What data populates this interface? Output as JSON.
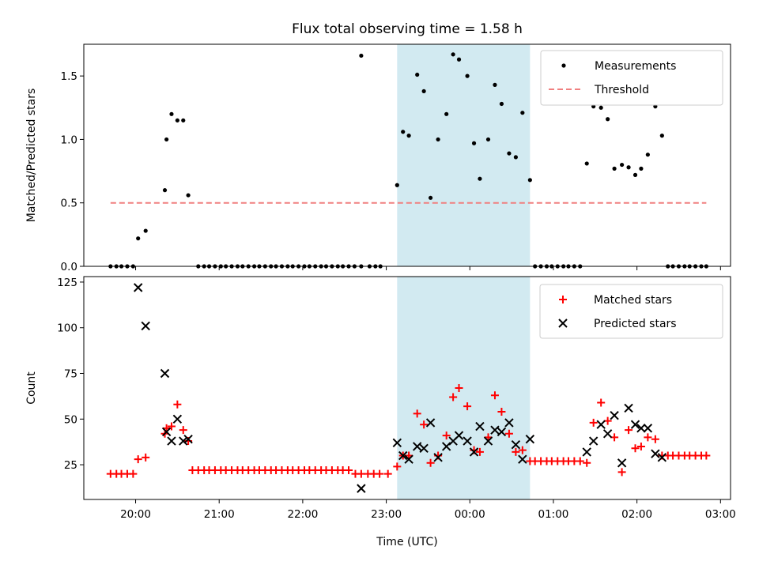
{
  "chart_data": {
    "title": "Flux total observing time = 1.58 h",
    "xlabel": "Time (UTC)",
    "x_unit": "hours since 00:00 UTC (negative = previous day)",
    "x_ticks": [
      {
        "value": -4,
        "label": "20:00"
      },
      {
        "value": -3,
        "label": "21:00"
      },
      {
        "value": -2,
        "label": "22:00"
      },
      {
        "value": -1,
        "label": "23:00"
      },
      {
        "value": 0,
        "label": "00:00"
      },
      {
        "value": 1,
        "label": "01:00"
      },
      {
        "value": 2,
        "label": "02:00"
      },
      {
        "value": 3,
        "label": "03:00"
      }
    ],
    "xlim": [
      -4.62,
      3.12
    ],
    "shaded_region": {
      "x": [
        -0.87,
        0.72
      ],
      "color": "#add8e6"
    },
    "panels": [
      {
        "type": "scatter",
        "ylabel": "Matched/Predicted stars",
        "ylim": [
          0,
          1.75
        ],
        "y_ticks": [
          0.0,
          0.5,
          1.0,
          1.5
        ],
        "y_tick_labels": [
          "0.0",
          "0.5",
          "1.0",
          "1.5"
        ],
        "legend": "top-right",
        "series": [
          {
            "name": "Measurements",
            "marker": "dot",
            "color": "#000000",
            "points": [
              [
                -4.3,
                0
              ],
              [
                -4.23,
                0
              ],
              [
                -4.17,
                0
              ],
              [
                -4.1,
                0
              ],
              [
                -4.03,
                0
              ],
              [
                -3.97,
                0.22
              ],
              [
                -3.88,
                0.28
              ],
              [
                -3.65,
                0.6
              ],
              [
                -3.63,
                1.0
              ],
              [
                -3.57,
                1.2
              ],
              [
                -3.5,
                1.15
              ],
              [
                -3.43,
                1.15
              ],
              [
                -3.37,
                0.56
              ],
              [
                -3.25,
                0
              ],
              [
                -3.18,
                0
              ],
              [
                -3.12,
                0
              ],
              [
                -3.05,
                0
              ],
              [
                -2.98,
                0
              ],
              [
                -2.92,
                0
              ],
              [
                -2.85,
                0
              ],
              [
                -2.78,
                0
              ],
              [
                -2.72,
                0
              ],
              [
                -2.65,
                0
              ],
              [
                -2.58,
                0
              ],
              [
                -2.52,
                0
              ],
              [
                -2.45,
                0
              ],
              [
                -2.38,
                0
              ],
              [
                -2.32,
                0
              ],
              [
                -2.25,
                0
              ],
              [
                -2.18,
                0
              ],
              [
                -2.12,
                0
              ],
              [
                -2.05,
                0
              ],
              [
                -1.98,
                0
              ],
              [
                -1.92,
                0
              ],
              [
                -1.85,
                0
              ],
              [
                -1.78,
                0
              ],
              [
                -1.72,
                0
              ],
              [
                -1.65,
                0
              ],
              [
                -1.58,
                0
              ],
              [
                -1.52,
                0
              ],
              [
                -1.3,
                1.66
              ],
              [
                -1.45,
                0
              ],
              [
                -1.38,
                0
              ],
              [
                -1.3,
                0
              ],
              [
                -1.2,
                0
              ],
              [
                -1.13,
                0
              ],
              [
                -1.07,
                0
              ],
              [
                -0.87,
                0.64
              ],
              [
                -0.8,
                1.06
              ],
              [
                -0.73,
                1.03
              ],
              [
                -0.63,
                1.51
              ],
              [
                -0.55,
                1.38
              ],
              [
                -0.47,
                0.54
              ],
              [
                -0.38,
                1.0
              ],
              [
                -0.28,
                1.2
              ],
              [
                -0.2,
                1.67
              ],
              [
                -0.13,
                1.63
              ],
              [
                -0.03,
                1.5
              ],
              [
                0.05,
                0.97
              ],
              [
                0.12,
                0.69
              ],
              [
                0.22,
                1.0
              ],
              [
                0.3,
                1.43
              ],
              [
                0.38,
                1.28
              ],
              [
                0.47,
                0.89
              ],
              [
                0.55,
                0.86
              ],
              [
                0.63,
                1.21
              ],
              [
                0.72,
                0.68
              ],
              [
                0.78,
                0
              ],
              [
                0.85,
                0
              ],
              [
                0.92,
                0
              ],
              [
                0.98,
                0
              ],
              [
                1.05,
                0
              ],
              [
                1.12,
                0
              ],
              [
                1.18,
                0
              ],
              [
                1.25,
                0
              ],
              [
                1.32,
                0
              ],
              [
                1.4,
                0.81
              ],
              [
                1.48,
                1.26
              ],
              [
                1.57,
                1.25
              ],
              [
                1.65,
                1.16
              ],
              [
                1.73,
                0.77
              ],
              [
                1.82,
                0.8
              ],
              [
                1.9,
                0.78
              ],
              [
                1.98,
                0.72
              ],
              [
                2.05,
                0.77
              ],
              [
                2.13,
                0.88
              ],
              [
                2.22,
                1.26
              ],
              [
                2.3,
                1.03
              ],
              [
                2.37,
                0
              ],
              [
                2.43,
                0
              ],
              [
                2.5,
                0
              ],
              [
                2.57,
                0
              ],
              [
                2.63,
                0
              ],
              [
                2.7,
                0
              ],
              [
                2.77,
                0
              ],
              [
                2.83,
                0
              ]
            ]
          },
          {
            "name": "Threshold",
            "marker": "dashed-line",
            "color": "#f08080",
            "points": [
              [
                -4.3,
                0.5
              ],
              [
                2.83,
                0.5
              ]
            ]
          }
        ]
      },
      {
        "type": "scatter",
        "ylabel": "Count",
        "ylim": [
          6,
          128
        ],
        "y_ticks": [
          25,
          50,
          75,
          100,
          125
        ],
        "y_tick_labels": [
          "25",
          "50",
          "75",
          "100",
          "125"
        ],
        "legend": "top-right",
        "series": [
          {
            "name": "Matched stars",
            "marker": "plus",
            "color": "#ff0000",
            "points": [
              [
                -4.3,
                20
              ],
              [
                -4.23,
                20
              ],
              [
                -4.17,
                20
              ],
              [
                -4.1,
                20
              ],
              [
                -4.03,
                20
              ],
              [
                -3.97,
                28
              ],
              [
                -3.88,
                29
              ],
              [
                -3.65,
                42
              ],
              [
                -3.63,
                45
              ],
              [
                -3.57,
                46
              ],
              [
                -3.5,
                58
              ],
              [
                -3.43,
                44
              ],
              [
                -3.37,
                38
              ],
              [
                -3.32,
                22
              ],
              [
                -3.25,
                22
              ],
              [
                -3.18,
                22
              ],
              [
                -3.12,
                22
              ],
              [
                -3.05,
                22
              ],
              [
                -2.98,
                22
              ],
              [
                -2.92,
                22
              ],
              [
                -2.85,
                22
              ],
              [
                -2.78,
                22
              ],
              [
                -2.72,
                22
              ],
              [
                -2.65,
                22
              ],
              [
                -2.58,
                22
              ],
              [
                -2.52,
                22
              ],
              [
                -2.45,
                22
              ],
              [
                -2.38,
                22
              ],
              [
                -2.32,
                22
              ],
              [
                -2.25,
                22
              ],
              [
                -2.18,
                22
              ],
              [
                -2.12,
                22
              ],
              [
                -2.05,
                22
              ],
              [
                -1.98,
                22
              ],
              [
                -1.92,
                22
              ],
              [
                -1.85,
                22
              ],
              [
                -1.78,
                22
              ],
              [
                -1.72,
                22
              ],
              [
                -1.65,
                22
              ],
              [
                -1.58,
                22
              ],
              [
                -1.52,
                22
              ],
              [
                -1.45,
                22
              ],
              [
                -1.37,
                20
              ],
              [
                -1.3,
                20
              ],
              [
                -1.22,
                20
              ],
              [
                -1.15,
                20
              ],
              [
                -1.08,
                20
              ],
              [
                -0.98,
                20
              ],
              [
                -0.87,
                24
              ],
              [
                -0.8,
                30
              ],
              [
                -0.73,
                30
              ],
              [
                -0.63,
                53
              ],
              [
                -0.55,
                47
              ],
              [
                -0.47,
                26
              ],
              [
                -0.38,
                30
              ],
              [
                -0.28,
                41
              ],
              [
                -0.2,
                62
              ],
              [
                -0.13,
                67
              ],
              [
                -0.03,
                57
              ],
              [
                0.05,
                33
              ],
              [
                0.12,
                32
              ],
              [
                0.22,
                40
              ],
              [
                0.3,
                63
              ],
              [
                0.38,
                54
              ],
              [
                0.47,
                42
              ],
              [
                0.55,
                32
              ],
              [
                0.63,
                33
              ],
              [
                0.72,
                27
              ],
              [
                0.78,
                27
              ],
              [
                0.85,
                27
              ],
              [
                0.92,
                27
              ],
              [
                0.98,
                27
              ],
              [
                1.05,
                27
              ],
              [
                1.12,
                27
              ],
              [
                1.18,
                27
              ],
              [
                1.25,
                27
              ],
              [
                1.32,
                27
              ],
              [
                1.4,
                26
              ],
              [
                1.48,
                48
              ],
              [
                1.57,
                59
              ],
              [
                1.65,
                49
              ],
              [
                1.73,
                40
              ],
              [
                1.82,
                21
              ],
              [
                1.9,
                44
              ],
              [
                1.98,
                34
              ],
              [
                2.05,
                35
              ],
              [
                2.13,
                40
              ],
              [
                2.22,
                39
              ],
              [
                2.3,
                30
              ],
              [
                2.37,
                30
              ],
              [
                2.43,
                30
              ],
              [
                2.5,
                30
              ],
              [
                2.57,
                30
              ],
              [
                2.63,
                30
              ],
              [
                2.7,
                30
              ],
              [
                2.77,
                30
              ],
              [
                2.83,
                30
              ]
            ]
          },
          {
            "name": "Predicted stars",
            "marker": "cross",
            "color": "#000000",
            "points": [
              [
                -3.97,
                122
              ],
              [
                -3.88,
                101
              ],
              [
                -3.65,
                75
              ],
              [
                -3.63,
                43
              ],
              [
                -3.57,
                38
              ],
              [
                -3.5,
                50
              ],
              [
                -3.43,
                38
              ],
              [
                -3.37,
                39
              ],
              [
                -1.3,
                12
              ],
              [
                -0.87,
                37
              ],
              [
                -0.8,
                30
              ],
              [
                -0.73,
                28
              ],
              [
                -0.63,
                35
              ],
              [
                -0.55,
                34
              ],
              [
                -0.47,
                48
              ],
              [
                -0.38,
                29
              ],
              [
                -0.28,
                35
              ],
              [
                -0.2,
                38
              ],
              [
                -0.13,
                41
              ],
              [
                -0.03,
                38
              ],
              [
                0.05,
                32
              ],
              [
                0.12,
                46
              ],
              [
                0.22,
                38
              ],
              [
                0.3,
                44
              ],
              [
                0.38,
                43
              ],
              [
                0.47,
                48
              ],
              [
                0.55,
                36
              ],
              [
                0.63,
                28
              ],
              [
                0.72,
                39
              ],
              [
                1.4,
                32
              ],
              [
                1.48,
                38
              ],
              [
                1.57,
                47
              ],
              [
                1.65,
                42
              ],
              [
                1.73,
                52
              ],
              [
                1.82,
                26
              ],
              [
                1.9,
                56
              ],
              [
                1.98,
                47
              ],
              [
                2.05,
                45
              ],
              [
                2.13,
                45
              ],
              [
                2.22,
                31
              ],
              [
                2.3,
                29
              ]
            ]
          }
        ]
      }
    ]
  }
}
